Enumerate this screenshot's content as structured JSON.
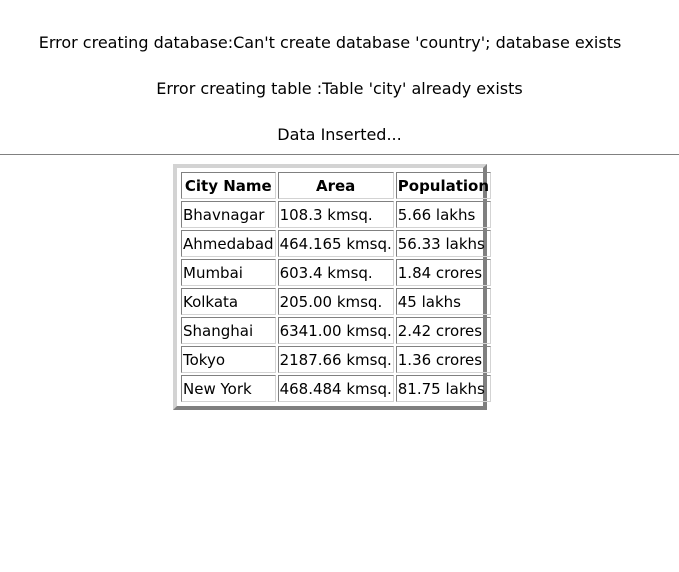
{
  "messages": {
    "db_error": "Error creating database:Can't create database 'country'; database exists",
    "table_error": "Error creating table :Table 'city' already exists",
    "data_inserted": "Data Inserted..."
  },
  "table": {
    "headers": [
      "City Name",
      "Area",
      "Population"
    ],
    "rows": [
      [
        "Bhavnagar",
        "108.3 kmsq.",
        "5.66 lakhs"
      ],
      [
        "Ahmedabad",
        "464.165 kmsq.",
        "56.33 lakhs"
      ],
      [
        "Mumbai",
        "603.4 kmsq.",
        "1.84 crores"
      ],
      [
        "Kolkata",
        "205.00 kmsq.",
        "45 lakhs"
      ],
      [
        "Shanghai",
        "6341.00 kmsq.",
        "2.42 crores"
      ],
      [
        "Tokyo",
        "2187.66 kmsq.",
        "1.36 crores"
      ],
      [
        "New York",
        "468.484 kmsq.",
        "81.75 lakhs"
      ]
    ]
  }
}
